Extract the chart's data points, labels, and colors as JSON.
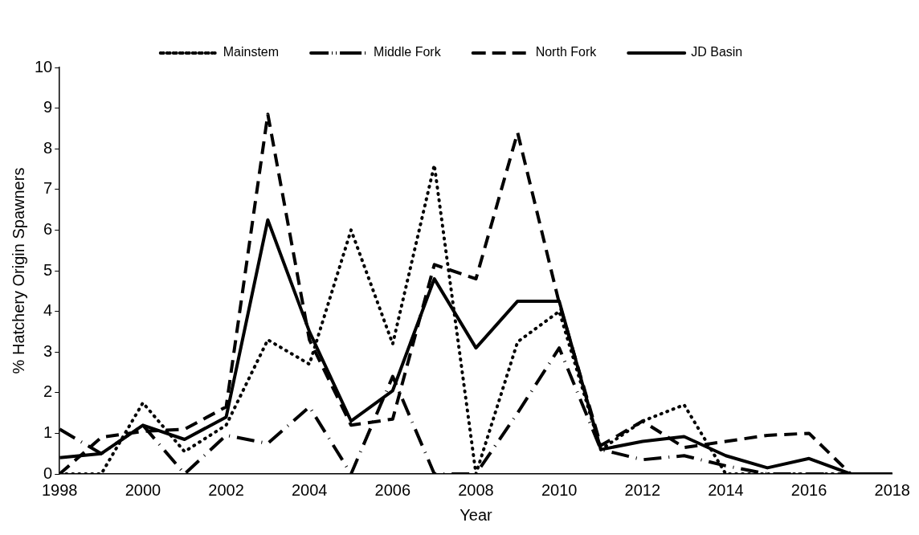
{
  "chart_data": {
    "type": "line",
    "xlabel": "Year",
    "ylabel": "% Hatchery Origin Spawners",
    "x": [
      1998,
      1999,
      2000,
      2001,
      2002,
      2003,
      2004,
      2005,
      2006,
      2007,
      2008,
      2009,
      2010,
      2011,
      2012,
      2013,
      2014,
      2015,
      2016,
      2017,
      2018
    ],
    "xlim": [
      1998,
      2018
    ],
    "xticks": [
      1998,
      2000,
      2002,
      2004,
      2006,
      2008,
      2010,
      2012,
      2014,
      2016,
      2018
    ],
    "ylim": [
      0,
      10
    ],
    "yticks": [
      0,
      1,
      2,
      3,
      4,
      5,
      6,
      7,
      8,
      9,
      10
    ],
    "legend": "top",
    "grid": false,
    "marker": "none",
    "series": [
      {
        "name": "Mainstem",
        "color": "#000000",
        "line_style": "dotted",
        "values": [
          0,
          0,
          1.75,
          0.55,
          1.2,
          3.3,
          2.7,
          6.0,
          3.2,
          7.6,
          0,
          3.25,
          4.0,
          0.6,
          1.3,
          1.7,
          0,
          0,
          0,
          0,
          0
        ]
      },
      {
        "name": "Middle Fork",
        "color": "#000000",
        "line_style": "dashdot",
        "values": [
          1.1,
          0.5,
          1.2,
          0,
          0.95,
          0.75,
          1.65,
          0,
          2.4,
          0,
          0,
          1.5,
          3.1,
          0.6,
          0.35,
          0.45,
          0.2,
          0,
          0,
          0,
          0
        ]
      },
      {
        "name": "North Fork",
        "color": "#000000",
        "line_style": "dashed",
        "values": [
          0,
          0.9,
          1.05,
          1.1,
          1.65,
          8.85,
          3.3,
          1.2,
          1.35,
          5.15,
          4.8,
          8.4,
          4.2,
          0.7,
          1.3,
          0.65,
          0.8,
          0.95,
          1.0,
          0,
          0
        ]
      },
      {
        "name": "JD Basin",
        "color": "#000000",
        "line_style": "solid",
        "values": [
          0.4,
          0.5,
          1.2,
          0.85,
          1.4,
          6.25,
          3.5,
          1.3,
          2.05,
          4.8,
          3.1,
          4.25,
          4.25,
          0.6,
          0.8,
          0.92,
          0.45,
          0.15,
          0.38,
          0,
          0
        ]
      }
    ]
  }
}
